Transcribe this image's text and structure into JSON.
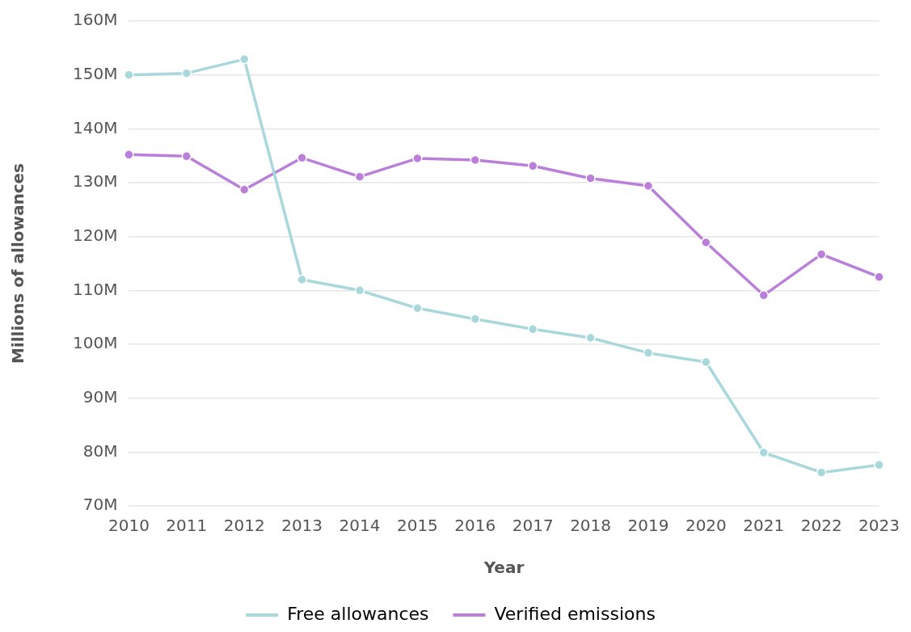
{
  "chart_data": {
    "type": "line",
    "xlabel": "Year",
    "ylabel": "Millions of allowances",
    "categories": [
      "2010",
      "2011",
      "2012",
      "2013",
      "2014",
      "2015",
      "2016",
      "2017",
      "2018",
      "2019",
      "2020",
      "2021",
      "2022",
      "2023"
    ],
    "series": [
      {
        "name": "Free allowances",
        "color": "#a8d8dc",
        "values": [
          150,
          150.3,
          152.9,
          112,
          110,
          106.7,
          104.7,
          102.8,
          101.2,
          98.4,
          96.7,
          79.9,
          76.2,
          77.6
        ]
      },
      {
        "name": "Verified emissions",
        "color": "#b97fd9",
        "values": [
          135.2,
          134.9,
          128.7,
          134.6,
          131.1,
          134.5,
          134.2,
          133.1,
          130.8,
          129.4,
          118.9,
          109.1,
          116.7,
          112.5
        ]
      }
    ],
    "ylim": [
      70,
      160
    ],
    "yticks": [
      {
        "value": 70,
        "label": "70M"
      },
      {
        "value": 80,
        "label": "80M"
      },
      {
        "value": 90,
        "label": "90M"
      },
      {
        "value": 100,
        "label": "100M"
      },
      {
        "value": 110,
        "label": "110M"
      },
      {
        "value": 120,
        "label": "120M"
      },
      {
        "value": 130,
        "label": "130M"
      },
      {
        "value": 140,
        "label": "140M"
      },
      {
        "value": 150,
        "label": "150M"
      },
      {
        "value": 160,
        "label": "160M"
      }
    ],
    "grid": "y",
    "legend": "bottom",
    "marker": "circle",
    "line_style": "solid"
  }
}
